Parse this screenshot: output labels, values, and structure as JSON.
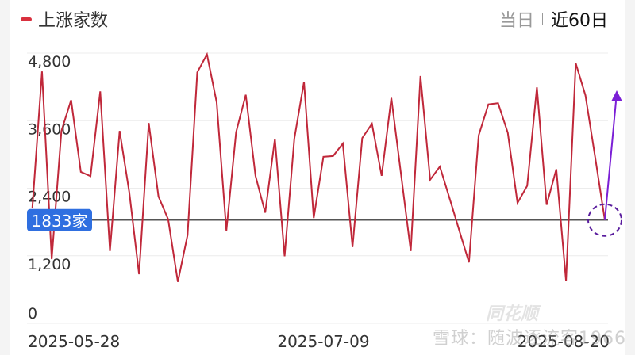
{
  "header": {
    "legend_label": "上涨家数",
    "tabs": [
      {
        "label": "当日",
        "active": false
      },
      {
        "label": "近60日",
        "active": true
      }
    ]
  },
  "watermark": {
    "text": "雪球：随波逐流客1966",
    "logo_text": "同花顺"
  },
  "colors": {
    "series": "#c0283a",
    "current_label_bg": "#2f6fe0",
    "arrow": "#7b1fd6",
    "reference_line": "#555555"
  },
  "chart_data": {
    "type": "line",
    "title": "",
    "xlabel": "",
    "ylabel": "",
    "ylim": [
      0,
      4800
    ],
    "yticks": [
      0,
      1200,
      2400,
      3600,
      4800
    ],
    "ytick_labels": [
      "0",
      "1,200",
      "2,400",
      "3,600",
      "4,800"
    ],
    "xtick_labels": [
      "2025-05-28",
      "2025-07-09",
      "2025-08-20"
    ],
    "grid": true,
    "series": [
      {
        "name": "上涨家数",
        "values": [
          2040,
          4473,
          1140,
          3418,
          3966,
          2690,
          2614,
          4120,
          1284,
          3418,
          2320,
          872,
          3558,
          2255,
          1847,
          736,
          1566,
          4458,
          4777,
          3924,
          1646,
          3394,
          4060,
          2620,
          1965,
          3277,
          1191,
          3277,
          4290,
          1870,
          2958,
          2972,
          3193,
          1355,
          3291,
          3544,
          2620,
          4004,
          2644,
          1284,
          4393,
          2550,
          2785,
          2222,
          1650,
          1083,
          3338,
          3890,
          3910,
          3385,
          2138,
          2443,
          4191,
          2105,
          2738,
          755,
          4620,
          4050,
          2954,
          1833
        ]
      }
    ],
    "current_value": 1833,
    "current_value_label": "1833家",
    "annotations": [
      "dashed circle around last point",
      "upward arrow"
    ]
  }
}
